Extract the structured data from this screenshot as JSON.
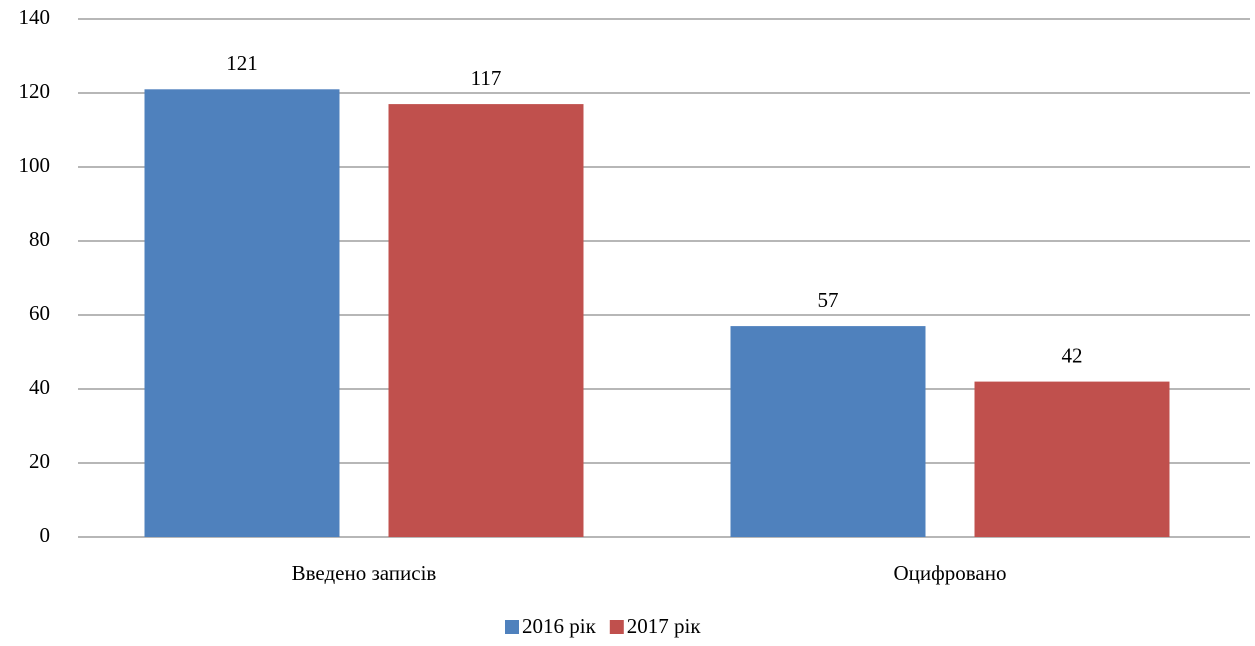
{
  "chart_data": {
    "type": "bar",
    "categories": [
      "Введено записів",
      "Оцифровано"
    ],
    "series": [
      {
        "name": "2016 рік",
        "color": "#4f81bd",
        "values": [
          121,
          57
        ]
      },
      {
        "name": "2017 рік",
        "color": "#c0504d",
        "values": [
          117,
          42
        ]
      }
    ],
    "ylim": [
      0,
      140
    ],
    "yticks": [
      0,
      20,
      40,
      60,
      80,
      100,
      120,
      140
    ],
    "grid": true,
    "legend": "bottom"
  }
}
